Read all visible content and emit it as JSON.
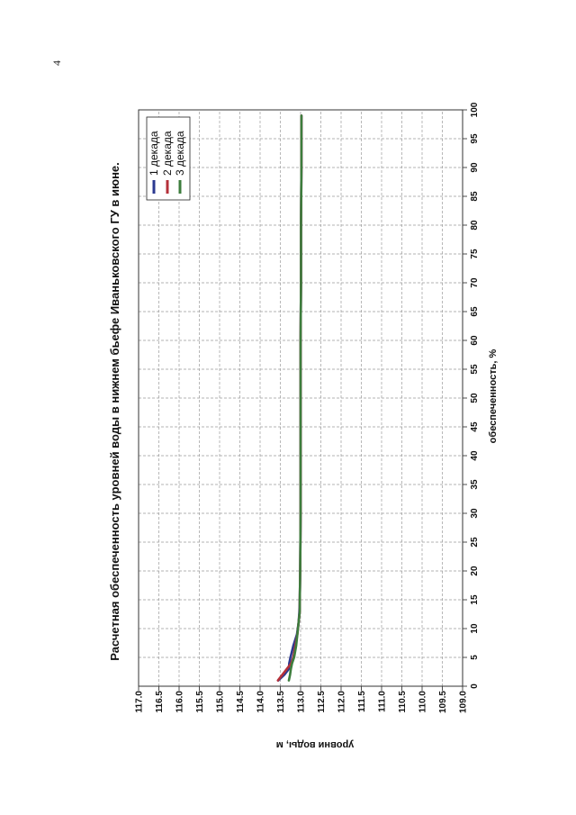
{
  "page_number": "4",
  "chart_data": {
    "type": "line",
    "title": "Расчетная обеспеченность уровней воды в нижнем бьефе Иваньковского ГУ в июне.",
    "xlabel": "обеспеченность, %",
    "ylabel": "уровни воды, м",
    "xlim": [
      0,
      100
    ],
    "ylim": [
      109.0,
      117.0
    ],
    "x_ticks": [
      "0",
      "5",
      "10",
      "15",
      "20",
      "25",
      "30",
      "35",
      "40",
      "45",
      "50",
      "55",
      "60",
      "65",
      "70",
      "75",
      "80",
      "85",
      "90",
      "95",
      "100"
    ],
    "y_ticks": [
      "109.0",
      "109.5",
      "110.0",
      "110.5",
      "111.0",
      "111.5",
      "112.0",
      "112.5",
      "113.0",
      "113.5",
      "114.0",
      "114.5",
      "115.0",
      "115.5",
      "116.0",
      "116.5",
      "117.0"
    ],
    "grid": true,
    "legend": "top-right",
    "x": [
      1,
      2,
      3,
      4,
      5,
      7,
      9,
      11,
      13,
      15,
      20,
      30,
      40,
      50,
      60,
      70,
      80,
      90,
      99
    ],
    "series": [
      {
        "name": "1 декада",
        "color": "#2b3990",
        "values": [
          113.55,
          113.4,
          113.29,
          113.28,
          113.25,
          113.18,
          113.09,
          113.05,
          113.03,
          113.02,
          113.01,
          113.0,
          113.0,
          113.0,
          113.0,
          112.99,
          112.99,
          112.98,
          112.98
        ]
      },
      {
        "name": "2 декада",
        "color": "#b5303a",
        "values": [
          113.56,
          113.45,
          113.34,
          113.23,
          113.18,
          113.13,
          113.08,
          113.05,
          113.02,
          113.02,
          113.01,
          113.0,
          113.0,
          113.0,
          113.0,
          112.99,
          112.99,
          112.98,
          112.98
        ]
      },
      {
        "name": "3 декада",
        "color": "#3d7d3d",
        "values": [
          113.29,
          113.26,
          113.24,
          113.21,
          113.16,
          113.11,
          113.08,
          113.05,
          113.02,
          113.02,
          113.01,
          113.0,
          113.0,
          113.0,
          113.0,
          112.99,
          112.99,
          112.98,
          112.98
        ]
      }
    ]
  }
}
